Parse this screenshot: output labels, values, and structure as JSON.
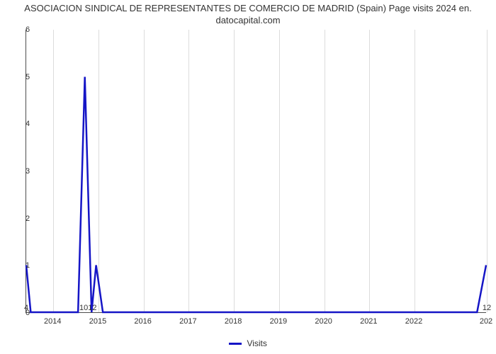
{
  "chart": {
    "type": "line",
    "title_line1": "ASOCIACION SINDICAL DE REPRESENTANTES DE COMERCIO DE MADRID (Spain) Page visits 2024 en.",
    "title_line2": "datocapital.com",
    "title_fontsize": 13,
    "title_color": "#333333",
    "background_color": "#ffffff",
    "plot_border_color": "#4d4d4d",
    "grid_color": "#dcdcdc",
    "xlim": [
      2013.4,
      2023.6
    ],
    "ylim": [
      0,
      6
    ],
    "ytick_step": 1,
    "yticks": [
      0,
      1,
      2,
      3,
      4,
      5,
      6
    ],
    "xticks": [
      2014,
      2015,
      2016,
      2017,
      2018,
      2019,
      2020,
      2021,
      2022
    ],
    "xtick_end_label": "202",
    "tick_fontsize": 11,
    "tick_color": "#333333",
    "line_color": "#1515c6",
    "line_width": 2.5,
    "data": {
      "x": [
        2013.4,
        2013.5,
        2013.6,
        2014.55,
        2014.7,
        2014.85,
        2014.95,
        2015.1,
        2015.2,
        2023.4,
        2023.6
      ],
      "y": [
        1.0,
        0.0,
        0.0,
        0.0,
        5.0,
        0.0,
        1.0,
        0.0,
        0.0,
        0.0,
        1.0
      ]
    },
    "data_labels": [
      {
        "x": 2013.4,
        "y": 0.0,
        "text": "4"
      },
      {
        "x": 2014.77,
        "y": 0.0,
        "text": "1012"
      },
      {
        "x": 2023.6,
        "y": 0.0,
        "text": "12"
      }
    ],
    "legend": {
      "label": "Visits",
      "color": "#1515c6",
      "fontsize": 12
    }
  }
}
